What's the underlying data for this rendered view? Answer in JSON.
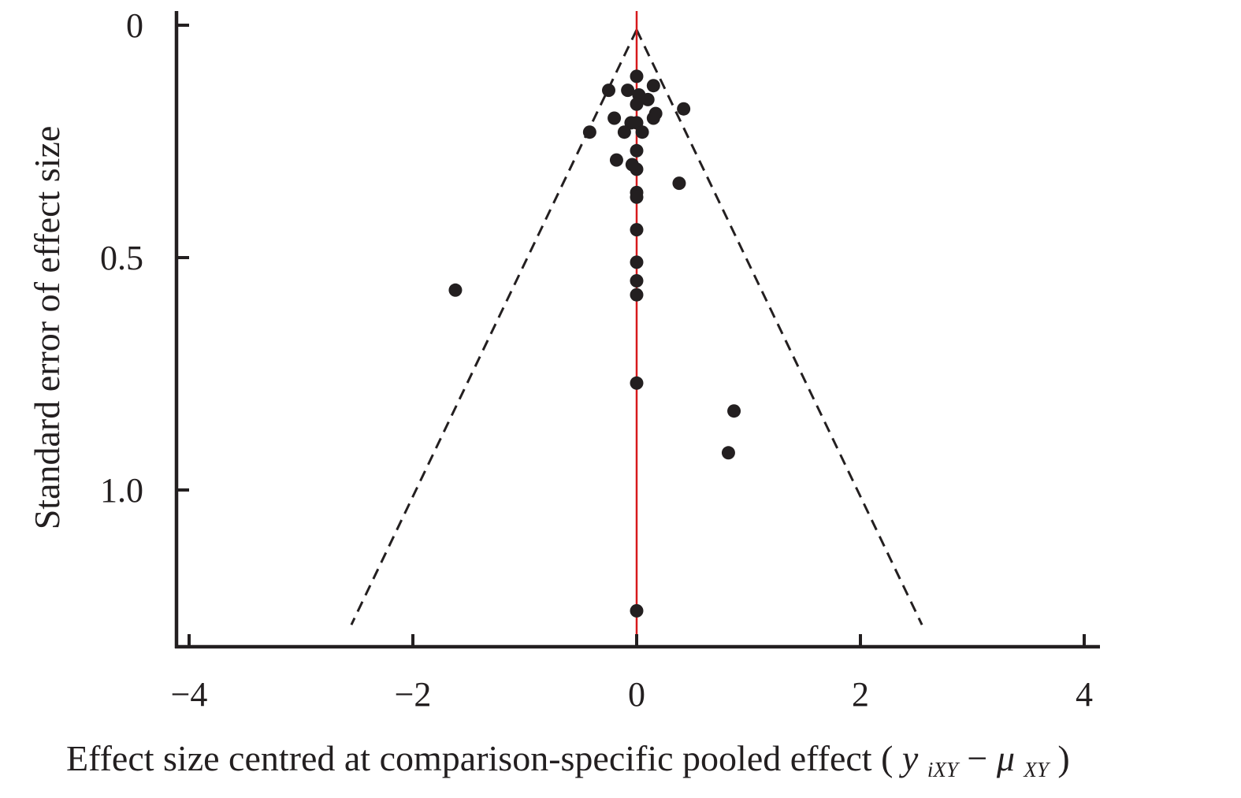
{
  "chart_data": {
    "type": "scatter",
    "title": "",
    "xlabel": {
      "text": "Effect size centred at comparison-specific pooled effect",
      "formula": {
        "open": "(",
        "y": "y",
        "y_sub": "iXY",
        "minus": "−",
        "mu": "μ",
        "mu_sub": "XY",
        "close": ")"
      }
    },
    "ylabel": "Standard error of effect size",
    "xlim": [
      -4.1,
      4.1
    ],
    "ylim": [
      0,
      1.34
    ],
    "y_inverted": true,
    "x_ticks": [
      -4,
      -2,
      0,
      2,
      4
    ],
    "x_tick_labels": [
      "−4",
      "−2",
      "0",
      "2",
      "4"
    ],
    "y_ticks": [
      0,
      0.5,
      1.0
    ],
    "y_tick_labels": [
      "0",
      "0.5",
      "1.0"
    ],
    "reference_line": {
      "x": 0,
      "color": "#d7191c"
    },
    "funnel": {
      "apex": [
        0,
        0.01
      ],
      "left_bottom": [
        -2.55,
        1.29
      ],
      "right_bottom": [
        2.55,
        1.29
      ],
      "style": "dashed"
    },
    "colors": {
      "points": "#231f20",
      "axes": "#231f20",
      "reference": "#d7191c"
    },
    "points": [
      {
        "x": 0.0,
        "y": 0.11
      },
      {
        "x": -0.25,
        "y": 0.14
      },
      {
        "x": -0.08,
        "y": 0.14
      },
      {
        "x": 0.15,
        "y": 0.13
      },
      {
        "x": 0.02,
        "y": 0.15
      },
      {
        "x": 0.1,
        "y": 0.16
      },
      {
        "x": 0.0,
        "y": 0.17
      },
      {
        "x": 0.42,
        "y": 0.18
      },
      {
        "x": -0.2,
        "y": 0.2
      },
      {
        "x": 0.15,
        "y": 0.2
      },
      {
        "x": 0.17,
        "y": 0.19
      },
      {
        "x": -0.05,
        "y": 0.21
      },
      {
        "x": 0.0,
        "y": 0.21
      },
      {
        "x": -0.42,
        "y": 0.23
      },
      {
        "x": -0.11,
        "y": 0.23
      },
      {
        "x": 0.05,
        "y": 0.23
      },
      {
        "x": 0.0,
        "y": 0.27
      },
      {
        "x": -0.18,
        "y": 0.29
      },
      {
        "x": -0.04,
        "y": 0.3
      },
      {
        "x": 0.0,
        "y": 0.31
      },
      {
        "x": 0.38,
        "y": 0.34
      },
      {
        "x": 0.0,
        "y": 0.36
      },
      {
        "x": 0.0,
        "y": 0.37
      },
      {
        "x": 0.0,
        "y": 0.44
      },
      {
        "x": 0.0,
        "y": 0.51
      },
      {
        "x": 0.0,
        "y": 0.55
      },
      {
        "x": -1.62,
        "y": 0.57
      },
      {
        "x": 0.0,
        "y": 0.58
      },
      {
        "x": 0.0,
        "y": 0.77
      },
      {
        "x": 0.87,
        "y": 0.83
      },
      {
        "x": 0.82,
        "y": 0.92
      },
      {
        "x": 0.0,
        "y": 1.26
      }
    ]
  }
}
